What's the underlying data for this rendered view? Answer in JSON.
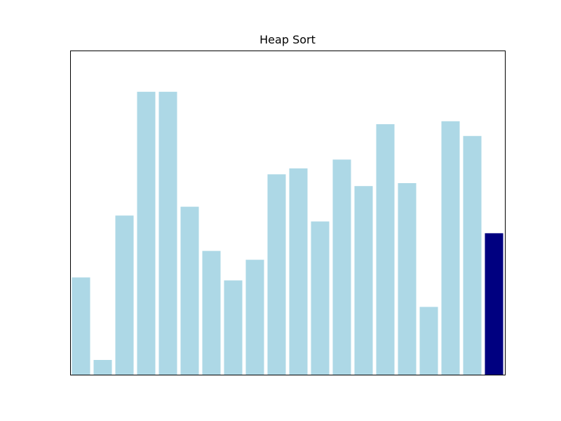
{
  "chart_data": {
    "type": "bar",
    "title": "Heap Sort",
    "xlabel": "",
    "ylabel": "",
    "values": [
      33,
      5,
      54,
      96,
      96,
      57,
      42,
      32,
      39,
      68,
      70,
      52,
      73,
      64,
      85,
      65,
      23,
      86,
      81,
      48
    ],
    "ylim": [
      0,
      110
    ],
    "highlight_index": 19,
    "colors": {
      "bar": "#add8e6",
      "highlight": "#000080"
    },
    "axes_visible": false,
    "grid": false
  }
}
